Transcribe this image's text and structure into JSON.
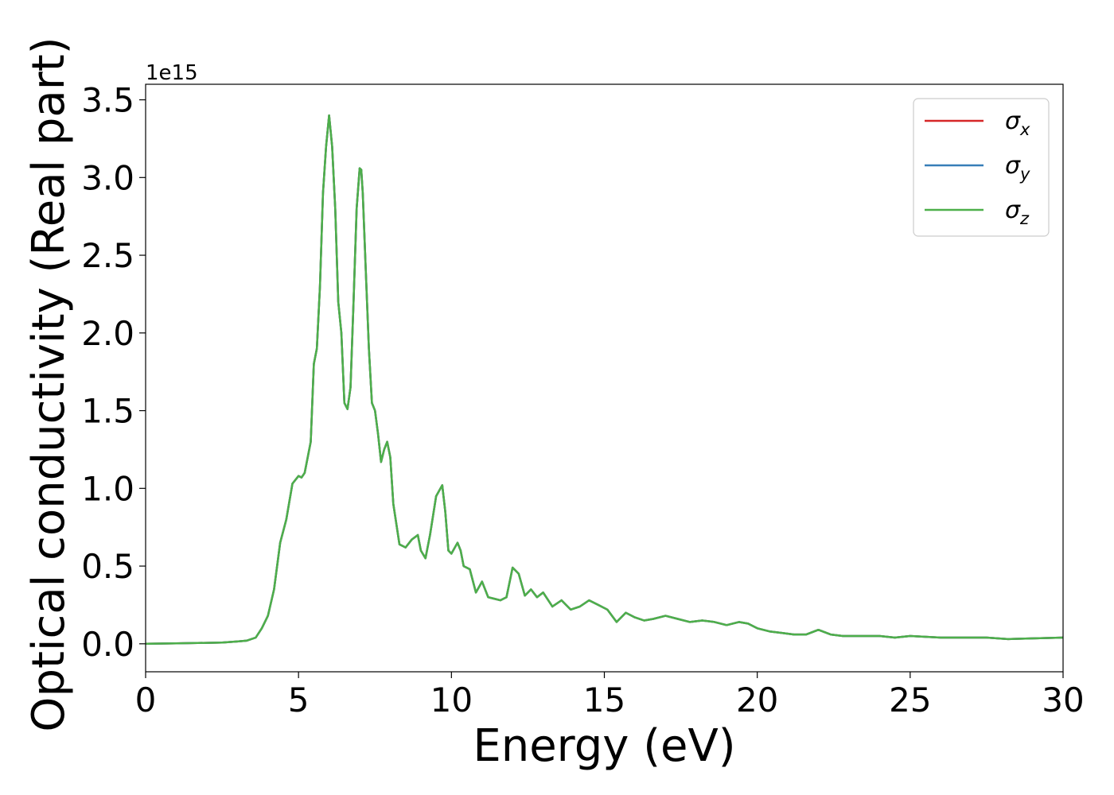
{
  "chart_data": {
    "type": "line",
    "xlabel": "Energy (eV)",
    "ylabel": "Optical conductivity (Real part)",
    "y_offset_label": "1e15",
    "xlim": [
      0,
      30
    ],
    "ylim": [
      -0.18,
      3.6
    ],
    "y_scale_factor": 1000000000000000.0,
    "xticks": [
      0,
      5,
      10,
      15,
      20,
      25,
      30
    ],
    "xtick_labels": [
      "0",
      "5",
      "10",
      "15",
      "20",
      "25",
      "30"
    ],
    "yticks": [
      0.0,
      0.5,
      1.0,
      1.5,
      2.0,
      2.5,
      3.0,
      3.5
    ],
    "ytick_labels": [
      "0.0",
      "0.5",
      "1.0",
      "1.5",
      "2.0",
      "2.5",
      "3.0",
      "3.5"
    ],
    "grid": false,
    "legend": {
      "position": "upper right",
      "entries": [
        {
          "base": "σ",
          "sub": "x",
          "color": "#d62728"
        },
        {
          "base": "σ",
          "sub": "y",
          "color": "#377eb8"
        },
        {
          "base": "σ",
          "sub": "z",
          "color": "#4daf4a"
        }
      ]
    },
    "x": [
      0,
      1,
      2,
      2.5,
      3,
      3.3,
      3.6,
      3.8,
      4.0,
      4.2,
      4.4,
      4.6,
      4.8,
      5.0,
      5.1,
      5.2,
      5.4,
      5.5,
      5.6,
      5.7,
      5.8,
      5.9,
      6.0,
      6.1,
      6.2,
      6.3,
      6.4,
      6.5,
      6.6,
      6.7,
      6.8,
      6.9,
      7.0,
      7.05,
      7.1,
      7.2,
      7.3,
      7.4,
      7.5,
      7.6,
      7.7,
      7.8,
      7.9,
      8.0,
      8.1,
      8.3,
      8.5,
      8.7,
      8.9,
      9.0,
      9.15,
      9.3,
      9.5,
      9.7,
      9.8,
      9.9,
      10.0,
      10.2,
      10.3,
      10.4,
      10.6,
      10.8,
      11.0,
      11.2,
      11.4,
      11.6,
      11.8,
      12.0,
      12.2,
      12.4,
      12.6,
      12.8,
      13.0,
      13.3,
      13.6,
      13.9,
      14.2,
      14.5,
      14.8,
      15.1,
      15.4,
      15.7,
      16.0,
      16.3,
      16.6,
      17.0,
      17.4,
      17.8,
      18.2,
      18.6,
      19.0,
      19.4,
      19.7,
      20.0,
      20.4,
      20.8,
      21.2,
      21.6,
      22.0,
      22.4,
      22.8,
      23.2,
      24.0,
      24.5,
      25.0,
      26.0,
      26.8,
      27.5,
      28.2,
      29.0,
      30.0
    ],
    "series": [
      {
        "name": "σx",
        "color": "#d62728",
        "values": [
          0.0,
          0.003,
          0.006,
          0.008,
          0.015,
          0.02,
          0.04,
          0.1,
          0.18,
          0.35,
          0.65,
          0.8,
          1.03,
          1.08,
          1.07,
          1.1,
          1.3,
          1.8,
          1.9,
          2.3,
          2.9,
          3.2,
          3.4,
          3.2,
          2.8,
          2.2,
          2.0,
          1.55,
          1.51,
          1.65,
          2.2,
          2.8,
          3.06,
          3.05,
          2.9,
          2.4,
          1.9,
          1.55,
          1.5,
          1.35,
          1.17,
          1.25,
          1.3,
          1.2,
          0.9,
          0.64,
          0.62,
          0.67,
          0.7,
          0.6,
          0.55,
          0.7,
          0.95,
          1.02,
          0.85,
          0.6,
          0.58,
          0.65,
          0.6,
          0.5,
          0.48,
          0.33,
          0.4,
          0.3,
          0.29,
          0.28,
          0.3,
          0.49,
          0.45,
          0.31,
          0.35,
          0.3,
          0.33,
          0.24,
          0.28,
          0.22,
          0.24,
          0.28,
          0.25,
          0.22,
          0.14,
          0.2,
          0.17,
          0.15,
          0.16,
          0.18,
          0.16,
          0.14,
          0.15,
          0.14,
          0.12,
          0.14,
          0.13,
          0.1,
          0.08,
          0.07,
          0.06,
          0.06,
          0.09,
          0.06,
          0.05,
          0.05,
          0.05,
          0.04,
          0.05,
          0.04,
          0.04,
          0.04,
          0.03,
          0.035,
          0.04
        ]
      },
      {
        "name": "σy",
        "color": "#377eb8",
        "values": [
          0.0,
          0.003,
          0.006,
          0.008,
          0.015,
          0.02,
          0.04,
          0.1,
          0.18,
          0.35,
          0.65,
          0.8,
          1.03,
          1.08,
          1.07,
          1.1,
          1.3,
          1.8,
          1.9,
          2.3,
          2.9,
          3.2,
          3.4,
          3.2,
          2.8,
          2.2,
          2.0,
          1.55,
          1.51,
          1.65,
          2.2,
          2.8,
          3.06,
          3.05,
          2.9,
          2.4,
          1.9,
          1.55,
          1.5,
          1.35,
          1.17,
          1.25,
          1.3,
          1.2,
          0.9,
          0.64,
          0.62,
          0.67,
          0.7,
          0.6,
          0.55,
          0.7,
          0.95,
          1.02,
          0.85,
          0.6,
          0.58,
          0.65,
          0.6,
          0.5,
          0.48,
          0.33,
          0.4,
          0.3,
          0.29,
          0.28,
          0.3,
          0.49,
          0.45,
          0.31,
          0.35,
          0.3,
          0.33,
          0.24,
          0.28,
          0.22,
          0.24,
          0.28,
          0.25,
          0.22,
          0.14,
          0.2,
          0.17,
          0.15,
          0.16,
          0.18,
          0.16,
          0.14,
          0.15,
          0.14,
          0.12,
          0.14,
          0.13,
          0.1,
          0.08,
          0.07,
          0.06,
          0.06,
          0.09,
          0.06,
          0.05,
          0.05,
          0.05,
          0.04,
          0.05,
          0.04,
          0.04,
          0.04,
          0.03,
          0.035,
          0.04
        ]
      },
      {
        "name": "σz",
        "color": "#4daf4a",
        "values": [
          0.0,
          0.003,
          0.006,
          0.008,
          0.015,
          0.02,
          0.04,
          0.1,
          0.18,
          0.35,
          0.65,
          0.8,
          1.03,
          1.08,
          1.07,
          1.1,
          1.3,
          1.8,
          1.9,
          2.3,
          2.9,
          3.2,
          3.4,
          3.2,
          2.8,
          2.2,
          2.0,
          1.55,
          1.51,
          1.65,
          2.2,
          2.8,
          3.06,
          3.05,
          2.9,
          2.4,
          1.9,
          1.55,
          1.5,
          1.35,
          1.17,
          1.25,
          1.3,
          1.2,
          0.9,
          0.64,
          0.62,
          0.67,
          0.7,
          0.6,
          0.55,
          0.7,
          0.95,
          1.02,
          0.85,
          0.6,
          0.58,
          0.65,
          0.6,
          0.5,
          0.48,
          0.33,
          0.4,
          0.3,
          0.29,
          0.28,
          0.3,
          0.49,
          0.45,
          0.31,
          0.35,
          0.3,
          0.33,
          0.24,
          0.28,
          0.22,
          0.24,
          0.28,
          0.25,
          0.22,
          0.14,
          0.2,
          0.17,
          0.15,
          0.16,
          0.18,
          0.16,
          0.14,
          0.15,
          0.14,
          0.12,
          0.14,
          0.13,
          0.1,
          0.08,
          0.07,
          0.06,
          0.06,
          0.09,
          0.06,
          0.05,
          0.05,
          0.05,
          0.04,
          0.05,
          0.04,
          0.04,
          0.04,
          0.03,
          0.035,
          0.04
        ]
      }
    ]
  }
}
